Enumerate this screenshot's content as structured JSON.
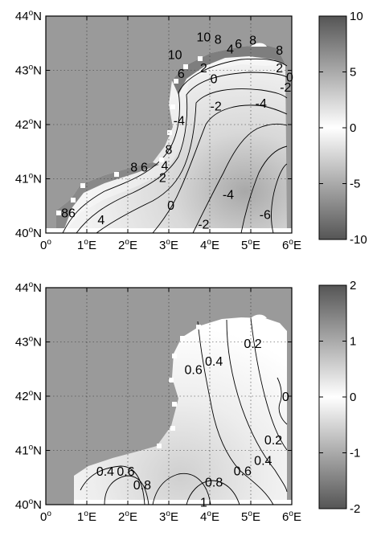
{
  "chart_data": [
    {
      "type": "contour-map",
      "x_ticks": [
        {
          "value": 0,
          "num": "0",
          "sup": "o",
          "suffix": ""
        },
        {
          "value": 1,
          "num": "1",
          "sup": "o",
          "suffix": "E"
        },
        {
          "value": 2,
          "num": "2",
          "sup": "o",
          "suffix": "E"
        },
        {
          "value": 3,
          "num": "3",
          "sup": "o",
          "suffix": "E"
        },
        {
          "value": 4,
          "num": "4",
          "sup": "o",
          "suffix": "E"
        },
        {
          "value": 5,
          "num": "5",
          "sup": "o",
          "suffix": "E"
        },
        {
          "value": 6,
          "num": "6",
          "sup": "o",
          "suffix": "E"
        }
      ],
      "y_ticks": [
        {
          "value": 44,
          "num": "44",
          "sup": "o",
          "suffix": "N"
        },
        {
          "value": 43,
          "num": "43",
          "sup": "o",
          "suffix": "N"
        },
        {
          "value": 42,
          "num": "42",
          "sup": "o",
          "suffix": "N"
        },
        {
          "value": 41,
          "num": "41",
          "sup": "o",
          "suffix": "N"
        },
        {
          "value": 40,
          "num": "40",
          "sup": "o",
          "suffix": "N"
        }
      ],
      "xlim": [
        0,
        6
      ],
      "ylim": [
        40,
        44
      ],
      "grid": "dotted",
      "colorbar": {
        "min": -10,
        "max": 10,
        "ticks": [
          "10",
          "5",
          "0",
          "-5",
          "-10"
        ],
        "tick_values": [
          10,
          5,
          0,
          -5,
          -10
        ]
      },
      "contour_labels": [
        {
          "text": "10",
          "lon": 3.85,
          "lat": 43.62
        },
        {
          "text": "8",
          "lon": 4.2,
          "lat": 43.58
        },
        {
          "text": "4",
          "lon": 4.5,
          "lat": 43.4
        },
        {
          "text": "6",
          "lon": 4.7,
          "lat": 43.5
        },
        {
          "text": "8",
          "lon": 5.05,
          "lat": 43.56
        },
        {
          "text": "8",
          "lon": 5.7,
          "lat": 43.38
        },
        {
          "text": "10",
          "lon": 3.15,
          "lat": 43.3
        },
        {
          "text": "6",
          "lon": 3.3,
          "lat": 42.95
        },
        {
          "text": "2",
          "lon": 3.85,
          "lat": 43.05
        },
        {
          "text": "0",
          "lon": 4.1,
          "lat": 42.85
        },
        {
          "text": "2",
          "lon": 5.7,
          "lat": 43.05
        },
        {
          "text": "0",
          "lon": 5.95,
          "lat": 42.88
        },
        {
          "text": "-2",
          "lon": 5.85,
          "lat": 42.7
        },
        {
          "text": "-2",
          "lon": 4.15,
          "lat": 42.35
        },
        {
          "text": "-4",
          "lon": 5.25,
          "lat": 42.4
        },
        {
          "text": "-4",
          "lon": 3.25,
          "lat": 42.08
        },
        {
          "text": "8",
          "lon": 3.0,
          "lat": 41.55
        },
        {
          "text": "8",
          "lon": 2.15,
          "lat": 41.22
        },
        {
          "text": "6",
          "lon": 2.4,
          "lat": 41.22
        },
        {
          "text": "4",
          "lon": 2.9,
          "lat": 41.25
        },
        {
          "text": "2",
          "lon": 2.85,
          "lat": 41.03
        },
        {
          "text": "0",
          "lon": 3.05,
          "lat": 40.52
        },
        {
          "text": "-4",
          "lon": 4.45,
          "lat": 40.72
        },
        {
          "text": "-6",
          "lon": 5.35,
          "lat": 40.35
        },
        {
          "text": "-2",
          "lon": 3.85,
          "lat": 40.17
        },
        {
          "text": "86",
          "lon": 0.55,
          "lat": 40.38
        },
        {
          "text": "4",
          "lon": 1.35,
          "lat": 40.25
        }
      ]
    },
    {
      "type": "contour-map",
      "x_ticks": [
        {
          "value": 0,
          "num": "0",
          "sup": "o",
          "suffix": ""
        },
        {
          "value": 1,
          "num": "1",
          "sup": "o",
          "suffix": "E"
        },
        {
          "value": 2,
          "num": "2",
          "sup": "o",
          "suffix": "E"
        },
        {
          "value": 3,
          "num": "3",
          "sup": "o",
          "suffix": "E"
        },
        {
          "value": 4,
          "num": "4",
          "sup": "o",
          "suffix": "E"
        },
        {
          "value": 5,
          "num": "5",
          "sup": "o",
          "suffix": "E"
        },
        {
          "value": 6,
          "num": "6",
          "sup": "o",
          "suffix": "E"
        }
      ],
      "y_ticks": [
        {
          "value": 44,
          "num": "44",
          "sup": "o",
          "suffix": "N"
        },
        {
          "value": 43,
          "num": "43",
          "sup": "o",
          "suffix": "N"
        },
        {
          "value": 42,
          "num": "42",
          "sup": "o",
          "suffix": "N"
        },
        {
          "value": 41,
          "num": "41",
          "sup": "o",
          "suffix": "N"
        },
        {
          "value": 40,
          "num": "40",
          "sup": "o",
          "suffix": "N"
        }
      ],
      "xlim": [
        0,
        6
      ],
      "ylim": [
        40,
        44
      ],
      "grid": "dotted",
      "colorbar": {
        "min": -2,
        "max": 2,
        "ticks": [
          "2",
          "1",
          "0",
          "-1",
          "-2"
        ],
        "tick_values": [
          2,
          1,
          0,
          -1,
          -2
        ]
      },
      "contour_labels": [
        {
          "text": "0.2",
          "lon": 5.05,
          "lat": 42.98
        },
        {
          "text": "0.4",
          "lon": 4.1,
          "lat": 42.65
        },
        {
          "text": "0.6",
          "lon": 3.6,
          "lat": 42.5
        },
        {
          "text": "0",
          "lon": 5.85,
          "lat": 42.0
        },
        {
          "text": "0.2",
          "lon": 5.55,
          "lat": 41.2
        },
        {
          "text": "0.4",
          "lon": 5.3,
          "lat": 40.82
        },
        {
          "text": "0.6",
          "lon": 4.8,
          "lat": 40.63
        },
        {
          "text": "0.8",
          "lon": 4.1,
          "lat": 40.42
        },
        {
          "text": "0.4",
          "lon": 1.45,
          "lat": 40.62
        },
        {
          "text": "0.6",
          "lon": 1.95,
          "lat": 40.62
        },
        {
          "text": "0.8",
          "lon": 2.35,
          "lat": 40.37
        },
        {
          "text": "1",
          "lon": 3.85,
          "lat": 40.05
        }
      ]
    }
  ]
}
